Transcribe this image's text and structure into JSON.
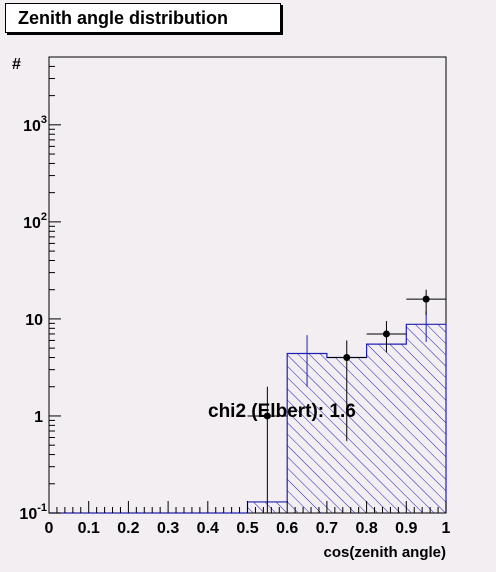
{
  "title": "Zenith angle distribution",
  "chart_data": {
    "type": "histogram",
    "xlabel": "cos(zenith angle)",
    "ylabel": "#",
    "xlim": [
      0,
      1
    ],
    "ylim": [
      0.1,
      5000
    ],
    "yscale": "log",
    "x_ticks": [
      "0",
      "0.1",
      "0.2",
      "0.3",
      "0.4",
      "0.5",
      "0.6",
      "0.7",
      "0.8",
      "0.9",
      "1"
    ],
    "y_ticks": [
      {
        "value": 0.1,
        "base": "10",
        "exp": "-1"
      },
      {
        "value": 1,
        "base": "1",
        "exp": ""
      },
      {
        "value": 10,
        "base": "10",
        "exp": ""
      },
      {
        "value": 100,
        "base": "10",
        "exp": "2"
      },
      {
        "value": 1000,
        "base": "10",
        "exp": "3"
      }
    ],
    "bin_edges": [
      0,
      0.1,
      0.2,
      0.3,
      0.4,
      0.5,
      0.6,
      0.7,
      0.8,
      0.9,
      1.0
    ],
    "expected_hist": [
      0.1,
      0.1,
      0.1,
      0.1,
      0.1,
      0.13,
      4.4,
      4.0,
      5.5,
      8.8
    ],
    "expected_error_bins": [
      {
        "x": 0.65,
        "y": 4.4,
        "lo": 2.0,
        "hi": 6.8
      },
      {
        "x": 0.95,
        "y": 8.8,
        "lo": 5.8,
        "hi": 12.0
      }
    ],
    "observed": [
      {
        "x": 0.55,
        "y": 1.0,
        "lo": 0.1,
        "hi": 2.0,
        "xerr": 0.05
      },
      {
        "x": 0.75,
        "y": 4.0,
        "lo": 0.55,
        "hi": 6.0,
        "xerr": 0.05
      },
      {
        "x": 0.85,
        "y": 7.0,
        "lo": 4.5,
        "hi": 9.5,
        "xerr": 0.05
      },
      {
        "x": 0.95,
        "y": 16.0,
        "lo": 11.0,
        "hi": 20.0,
        "xerr": 0.05
      }
    ],
    "annotation": "chi2 (Elbert): 1.6",
    "colors": {
      "hist": "#2020b0",
      "hatch": "#2020b0",
      "points": "#000000",
      "background": "#f2eef2",
      "frame": "#000000"
    }
  }
}
